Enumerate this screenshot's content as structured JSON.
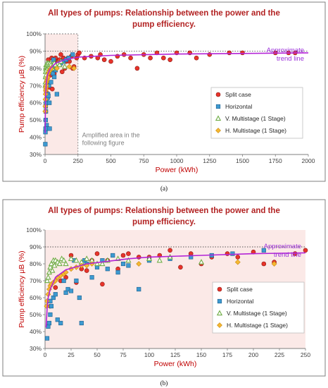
{
  "colors": {
    "split_case": "#e8332a",
    "horizontal": "#3d9ad1",
    "v_multistage": "#70ad47",
    "h_multistage": "#f5b833",
    "trend": "#b324d6",
    "title": "#b22222",
    "axis_label": "#c00000",
    "amplified_fill": "#fbe9e7"
  },
  "legend": {
    "split_case": "Split case",
    "horizontal": "Horizontal",
    "v_multistage": "V. Multistage (1 Stage)",
    "h_multistage": "H. Multistage (1 Stage)"
  },
  "panel_a": {
    "title_line1": "All types of pumps: Relationship between the power and the",
    "title_line2": "pump efficiency.",
    "caption": "(a)",
    "trend_label_1": "Approximate",
    "trend_label_2": "trend line",
    "amplified_label_1": "Amplified area in the",
    "amplified_label_2": "following figure"
  },
  "panel_b": {
    "title_line1": "All types of pumps: Relationship between the power and the",
    "title_line2": "pump efficiency.",
    "caption": "(b)",
    "trend_label_1": "Approximate",
    "trend_label_2": "trend line"
  },
  "chart_data": [
    {
      "type": "scatter",
      "title": "All types of pumps: Relationship between the power and the pump efficiency.",
      "xlabel": "Power (kWh)",
      "ylabel": "Pump efficiency μB (%)",
      "xlim": [
        0,
        2000
      ],
      "ylim": [
        30,
        100
      ],
      "xticks": [
        0,
        250,
        500,
        750,
        1000,
        1250,
        1500,
        1750,
        2000
      ],
      "yticks": [
        30,
        40,
        50,
        60,
        70,
        80,
        90,
        100
      ],
      "ytick_format": "%",
      "reference_line_y": 90,
      "amplified_area": {
        "x": [
          0,
          250
        ],
        "y": [
          30,
          100
        ]
      },
      "legend_position": "right",
      "series": [
        {
          "name": "Split case",
          "key": "split_case",
          "marker": "circle",
          "x": [
            5,
            10,
            15,
            20,
            25,
            30,
            35,
            40,
            45,
            50,
            55,
            60,
            70,
            75,
            80,
            90,
            100,
            110,
            120,
            130,
            140,
            150,
            160,
            175,
            185,
            200,
            210,
            220,
            240,
            250,
            260,
            300,
            350,
            400,
            420,
            450,
            500,
            550,
            600,
            650,
            700,
            750,
            800,
            850,
            900,
            950,
            1000,
            1100,
            1150,
            1250,
            1400,
            1500,
            1750,
            1850,
            1900
          ],
          "y": [
            55,
            66,
            70,
            72,
            85,
            69,
            77,
            76,
            82,
            86,
            68,
            82,
            77,
            85,
            86,
            84,
            84,
            85,
            88,
            78,
            86,
            80,
            84,
            86,
            84,
            87,
            80,
            81,
            86,
            88,
            89,
            86,
            87,
            86,
            88,
            85,
            84,
            87,
            88,
            86,
            80,
            88,
            86,
            89,
            86,
            85,
            89,
            89,
            86,
            88,
            89,
            89,
            89,
            89,
            89
          ]
        },
        {
          "name": "Horizontal",
          "key": "horizontal",
          "marker": "square",
          "x": [
            2,
            3,
            4,
            5,
            5,
            6,
            8,
            10,
            12,
            15,
            18,
            20,
            22,
            25,
            28,
            30,
            33,
            35,
            38,
            40,
            45,
            50,
            55,
            60,
            65,
            70,
            75,
            80,
            90,
            100,
            120,
            140,
            160,
            180,
            210
          ],
          "y": [
            36,
            43,
            45,
            50,
            58,
            55,
            60,
            62,
            47,
            45,
            70,
            63,
            65,
            64,
            82,
            70,
            60,
            45,
            82,
            80,
            72,
            78,
            82,
            77,
            85,
            75,
            80,
            79,
            65,
            82,
            83,
            84,
            85,
            86,
            88
          ]
        },
        {
          "name": "V. Multistage (1 Stage)",
          "key": "v_multistage",
          "marker": "triangle",
          "x": [
            2,
            3,
            4,
            5,
            6,
            7,
            8,
            9,
            10,
            12,
            14,
            16,
            18,
            20,
            25,
            30,
            35,
            40,
            45,
            50,
            55,
            60,
            70,
            80,
            100,
            110,
            120,
            150
          ],
          "y": [
            70,
            72,
            75,
            78,
            80,
            76,
            82,
            79,
            82,
            81,
            80,
            83,
            82,
            80,
            83,
            82,
            81,
            83,
            82,
            80,
            80,
            82,
            83,
            82,
            83,
            82,
            84,
            81
          ]
        },
        {
          "name": "H. Multistage (1 Stage)",
          "key": "h_multistage",
          "marker": "diamond",
          "x": [
            1.5,
            2,
            3,
            4,
            5,
            6,
            8,
            10,
            12,
            15,
            18,
            20,
            25,
            30,
            35,
            40,
            45,
            90,
            185,
            220
          ],
          "y": [
            55,
            58,
            62,
            65,
            67,
            68,
            69,
            70,
            72,
            73,
            74,
            75,
            77,
            78,
            79,
            79,
            80,
            80,
            81,
            80
          ]
        }
      ],
      "trend": {
        "name": "Approximate trend line",
        "type": "logarithmic",
        "x": [
          1,
          2,
          5,
          10,
          20,
          40,
          80,
          150,
          250,
          500,
          1000,
          2000
        ],
        "y": [
          42.5,
          54,
          65,
          72,
          76.5,
          80,
          83,
          85,
          86.5,
          87.5,
          88.3,
          89
        ]
      }
    },
    {
      "type": "scatter",
      "title": "All types of pumps: Relationship between the power and the pump efficiency.",
      "xlabel": "Power (kWh)",
      "ylabel": "Pump efficiency μB (%)",
      "xlim": [
        0,
        250
      ],
      "ylim": [
        30,
        100
      ],
      "xticks": [
        0,
        25,
        50,
        75,
        100,
        125,
        150,
        175,
        200,
        225,
        250
      ],
      "yticks": [
        30,
        40,
        50,
        60,
        70,
        80,
        90,
        100
      ],
      "ytick_format": "%",
      "reference_line_y": 90,
      "legend_position": "right",
      "series": [
        {
          "name": "Split case",
          "key": "split_case",
          "marker": "circle",
          "x": [
            5,
            10,
            15,
            20,
            25,
            30,
            35,
            40,
            45,
            50,
            55,
            60,
            70,
            75,
            80,
            90,
            100,
            110,
            120,
            130,
            140,
            150,
            160,
            175,
            185,
            200,
            210,
            220,
            240,
            250
          ],
          "y": [
            55,
            66,
            70,
            72,
            85,
            69,
            77,
            76,
            82,
            86,
            68,
            82,
            77,
            85,
            86,
            84,
            84,
            85,
            88,
            78,
            86,
            80,
            84,
            86,
            84,
            87,
            80,
            81,
            86,
            88
          ]
        },
        {
          "name": "Horizontal",
          "key": "horizontal",
          "marker": "square",
          "x": [
            2,
            3,
            4,
            5,
            5,
            6,
            8,
            10,
            12,
            15,
            18,
            20,
            22,
            25,
            28,
            30,
            33,
            35,
            38,
            40,
            45,
            50,
            55,
            60,
            65,
            70,
            75,
            80,
            90,
            100,
            120,
            140,
            160,
            180,
            210
          ],
          "y": [
            36,
            43,
            45,
            50,
            58,
            55,
            60,
            62,
            47,
            45,
            70,
            63,
            65,
            64,
            82,
            70,
            60,
            45,
            82,
            80,
            72,
            78,
            82,
            77,
            85,
            75,
            80,
            79,
            65,
            82,
            83,
            84,
            85,
            86,
            88
          ]
        },
        {
          "name": "V. Multistage (1 Stage)",
          "key": "v_multistage",
          "marker": "triangle",
          "x": [
            2,
            3,
            4,
            5,
            6,
            7,
            8,
            9,
            10,
            12,
            14,
            16,
            18,
            20,
            25,
            30,
            35,
            40,
            45,
            50,
            55,
            60,
            70,
            80,
            100,
            110,
            120,
            150
          ],
          "y": [
            70,
            72,
            75,
            78,
            80,
            76,
            82,
            79,
            82,
            81,
            80,
            83,
            82,
            80,
            83,
            82,
            81,
            83,
            82,
            80,
            80,
            82,
            83,
            82,
            83,
            82,
            84,
            81
          ]
        },
        {
          "name": "H. Multistage (1 Stage)",
          "key": "h_multistage",
          "marker": "diamond",
          "x": [
            1.5,
            2,
            3,
            4,
            5,
            6,
            8,
            10,
            12,
            15,
            18,
            20,
            25,
            30,
            35,
            40,
            45,
            90,
            185,
            220
          ],
          "y": [
            55,
            58,
            62,
            65,
            67,
            68,
            69,
            70,
            72,
            73,
            74,
            75,
            77,
            78,
            79,
            79,
            80,
            80,
            81,
            80
          ]
        }
      ],
      "trend": {
        "name": "Approximate trend line",
        "type": "logarithmic",
        "x": [
          1,
          2,
          3,
          5,
          10,
          20,
          40,
          60,
          80,
          100,
          150,
          200,
          250
        ],
        "y": [
          42.5,
          54,
          60,
          65,
          72,
          76.5,
          80,
          81.5,
          83,
          84,
          85,
          86,
          86.5
        ]
      }
    }
  ]
}
